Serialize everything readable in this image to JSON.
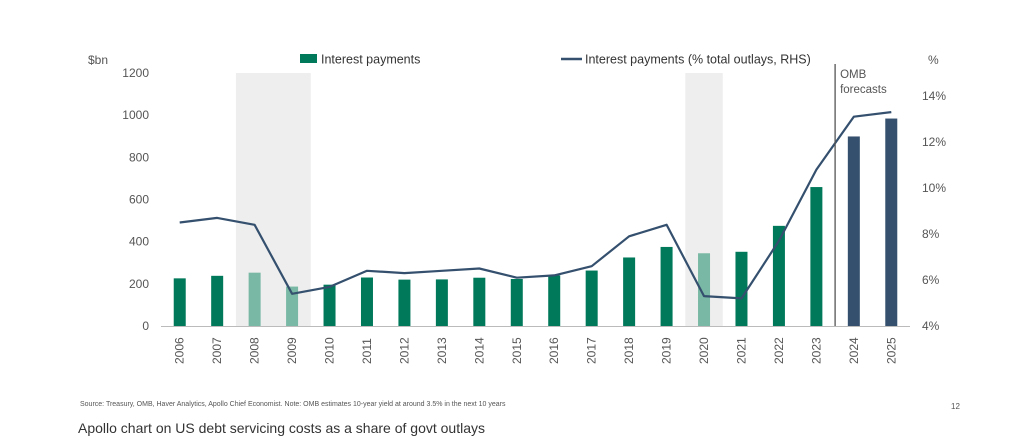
{
  "chart_data": {
    "type": "bar",
    "categories": [
      "2006",
      "2007",
      "2008",
      "2009",
      "2010",
      "2011",
      "2012",
      "2013",
      "2014",
      "2015",
      "2016",
      "2017",
      "2018",
      "2019",
      "2020",
      "2021",
      "2022",
      "2023",
      "2024",
      "2025"
    ],
    "series": [
      {
        "name": "Interest payments",
        "axis": "left",
        "type": "bar",
        "values": [
          226,
          238,
          253,
          187,
          196,
          230,
          220,
          221,
          229,
          223,
          240,
          263,
          325,
          375,
          345,
          352,
          475,
          659,
          899,
          984
        ],
        "colors": [
          "#00785a",
          "#00785a",
          "#79b8a4",
          "#79b8a4",
          "#00785a",
          "#00785a",
          "#00785a",
          "#00785a",
          "#00785a",
          "#00785a",
          "#00785a",
          "#00785a",
          "#00785a",
          "#00785a",
          "#79b8a4",
          "#00785a",
          "#00785a",
          "#00785a",
          "#34506e",
          "#34506e"
        ]
      },
      {
        "name": "Interest payments (% total outlays, RHS)",
        "axis": "right",
        "type": "line",
        "color": "#34506e",
        "values": [
          8.5,
          8.7,
          8.4,
          5.4,
          5.7,
          6.4,
          6.3,
          6.4,
          6.5,
          6.1,
          6.2,
          6.6,
          7.9,
          8.4,
          5.3,
          5.2,
          7.7,
          10.8,
          13.1,
          13.3
        ]
      }
    ],
    "ylabel_left": "$bn",
    "ylabel_right": "%",
    "ylim_left": [
      0,
      1200
    ],
    "yticks_left": [
      "0",
      "200",
      "400",
      "600",
      "800",
      "1000",
      "1200"
    ],
    "ylim_right": [
      4,
      15
    ],
    "yticks_right": [
      "4%",
      "6%",
      "8%",
      "10%",
      "12%",
      "14%"
    ],
    "recession_shading": [
      [
        "2008",
        "2009"
      ],
      [
        "2020",
        "2020"
      ]
    ],
    "forecast_marker": {
      "after": "2023",
      "label_lines": [
        "OMB",
        "forecasts"
      ]
    },
    "legend_position": "top",
    "grid": false
  },
  "source_text": "Source: Treasury, OMB, Haver Analytics, Apollo Chief Economist. Note: OMB estimates 10-year yield at around 3.5% in the next 10 years",
  "page_number": "12",
  "caption": "Apollo chart on US debt servicing costs as a share of govt outlays"
}
